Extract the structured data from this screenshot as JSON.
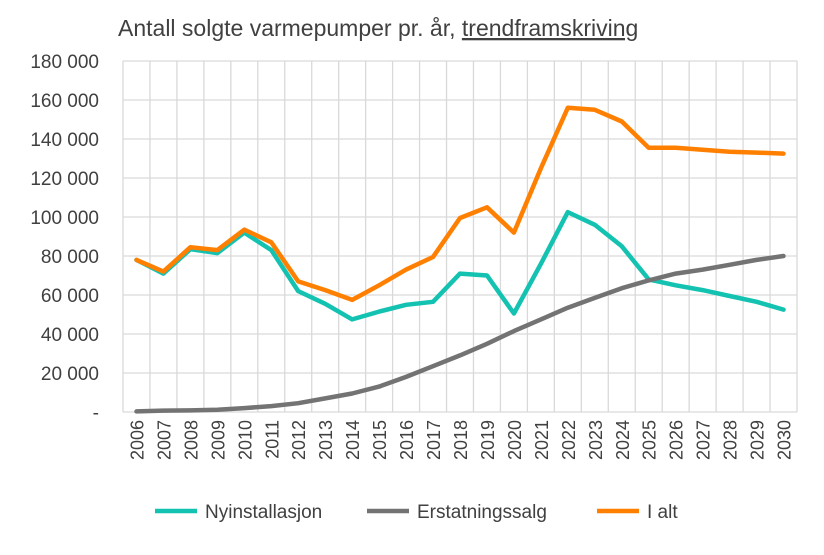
{
  "chart_data": {
    "type": "line",
    "title": "Antall solgte varmepumper pr. år, ",
    "title_underlined": "trendframskriving",
    "xlabel": "",
    "ylabel": "",
    "ylim": [
      0,
      180000
    ],
    "yticks": [
      0,
      20000,
      40000,
      60000,
      80000,
      100000,
      120000,
      140000,
      160000,
      180000
    ],
    "ytick_labels": [
      "-",
      "20 000",
      "40 000",
      "60 000",
      "80 000",
      "100 000",
      "120 000",
      "140 000",
      "160 000",
      "180 000"
    ],
    "grid": true,
    "legend": "bottom",
    "categories": [
      "2006",
      "2007",
      "2008",
      "2009",
      "2010",
      "2011",
      "2012",
      "2013",
      "2014",
      "2015",
      "2016",
      "2017",
      "2018",
      "2019",
      "2020",
      "2021",
      "2022",
      "2023",
      "2024",
      "2025",
      "2026",
      "2027",
      "2028",
      "2029",
      "2030"
    ],
    "series": [
      {
        "name": "Nyinstallasjon",
        "color": "#13C2B0",
        "values": [
          78000,
          71000,
          83500,
          81500,
          92000,
          83000,
          62000,
          55500,
          47500,
          51500,
          55000,
          56500,
          71000,
          70000,
          50500,
          76000,
          102500,
          96000,
          85000,
          68000,
          65000,
          62500,
          59500,
          56500,
          52500
        ]
      },
      {
        "name": "Erstatningssalg",
        "color": "#737373",
        "values": [
          300,
          700,
          800,
          1200,
          2000,
          3000,
          4500,
          7000,
          9500,
          13000,
          18000,
          23500,
          29000,
          35000,
          41500,
          47500,
          53500,
          58500,
          63500,
          67500,
          71000,
          73000,
          75500,
          78000,
          80000
        ]
      },
      {
        "name": "I alt",
        "color": "#FF8000",
        "values": [
          78000,
          72000,
          84500,
          83000,
          93500,
          87000,
          67000,
          62500,
          57500,
          65000,
          73000,
          79500,
          99500,
          105000,
          92000,
          125000,
          156000,
          155000,
          149000,
          135500,
          135500,
          134500,
          133500,
          133000,
          132500
        ]
      }
    ]
  }
}
